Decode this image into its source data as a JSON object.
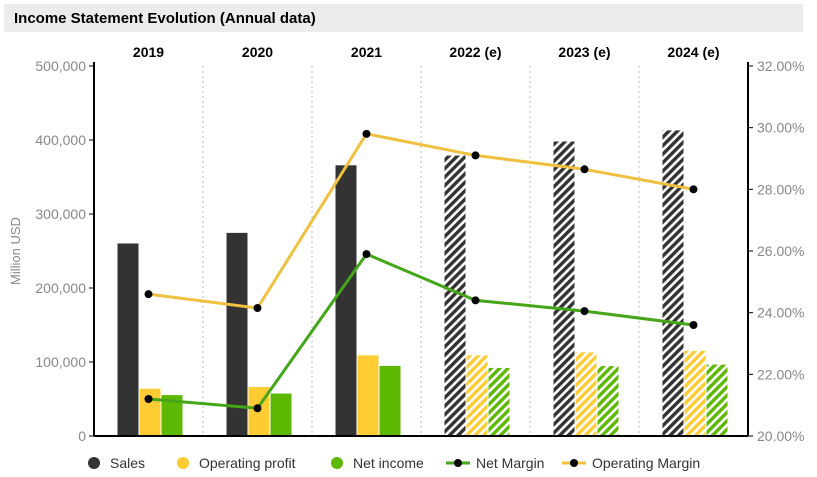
{
  "title": "Income Statement Evolution (Annual data)",
  "chart_data": {
    "type": "bar",
    "title": "Income Statement Evolution (Annual data)",
    "categories": [
      "2019",
      "2020",
      "2021",
      "2022 (e)",
      "2023 (e)",
      "2024 (e)"
    ],
    "estimated_from_index": 3,
    "ylabel": "Million USD",
    "ylim": [
      0,
      500000
    ],
    "y2lim": [
      20.0,
      32.0
    ],
    "y_ticks": [
      "0",
      "100,000",
      "200,000",
      "300,000",
      "400,000",
      "500,000"
    ],
    "y2_ticks": [
      "20.00%",
      "22.00%",
      "24.00%",
      "26.00%",
      "28.00%",
      "30.00%",
      "32.00%"
    ],
    "grid": "vertical dotted",
    "legend_position": "bottom",
    "series": [
      {
        "name": "Sales",
        "kind": "bar",
        "axis": "left",
        "color": "#333333",
        "values": [
          260174,
          274515,
          365817,
          379000,
          398000,
          413000
        ]
      },
      {
        "name": "Operating profit",
        "kind": "bar",
        "axis": "left",
        "color": "#ffcc33",
        "values": [
          63930,
          66288,
          108949,
          109000,
          113000,
          115000
        ]
      },
      {
        "name": "Net income",
        "kind": "bar",
        "axis": "left",
        "color": "#5cb800",
        "values": [
          55256,
          57411,
          94680,
          92000,
          94500,
          96500
        ]
      },
      {
        "name": "Net Margin",
        "kind": "line",
        "axis": "right",
        "color": "#44a618",
        "values": [
          21.2,
          20.9,
          25.9,
          24.4,
          24.05,
          23.6
        ]
      },
      {
        "name": "Operating Margin",
        "kind": "line",
        "axis": "right",
        "color": "#f0c040",
        "values": [
          24.6,
          24.15,
          29.8,
          29.1,
          28.65,
          28.0
        ]
      }
    ]
  }
}
